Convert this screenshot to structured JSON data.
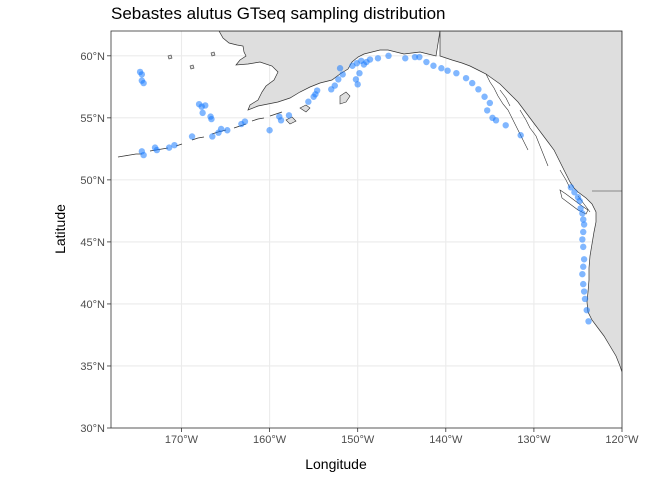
{
  "title": "Sebastes alutus GTseq sampling distribution",
  "x_axis_title": "Longitude",
  "y_axis_title": "Latitude",
  "colors": {
    "land": "#dedede",
    "coastline": "#333333",
    "grid": "#ebebeb",
    "points": "#1a7cff",
    "panel_border": "#333333"
  },
  "chart_data": {
    "type": "scatter",
    "xlim": [
      -178,
      -120
    ],
    "ylim": [
      30,
      62
    ],
    "x_ticks": [
      {
        "value": -170,
        "label": "170°W"
      },
      {
        "value": -160,
        "label": "160°W"
      },
      {
        "value": -150,
        "label": "150°W"
      },
      {
        "value": -140,
        "label": "140°W"
      },
      {
        "value": -130,
        "label": "130°W"
      },
      {
        "value": -120,
        "label": "120°W"
      }
    ],
    "y_ticks": [
      {
        "value": 30,
        "label": "30°N"
      },
      {
        "value": 35,
        "label": "35°N"
      },
      {
        "value": 40,
        "label": "40°N"
      },
      {
        "value": 45,
        "label": "45°N"
      },
      {
        "value": 50,
        "label": "50°N"
      },
      {
        "value": 55,
        "label": "55°N"
      },
      {
        "value": 60,
        "label": "60°N"
      }
    ],
    "grid": true,
    "points": [
      {
        "lon": -174.7,
        "lat": 58.7
      },
      {
        "lon": -174.5,
        "lat": 58.5
      },
      {
        "lon": -174.3,
        "lat": 57.8
      },
      {
        "lon": -174.5,
        "lat": 58.0
      },
      {
        "lon": -174.3,
        "lat": 52.0
      },
      {
        "lon": -174.5,
        "lat": 52.3
      },
      {
        "lon": -173.0,
        "lat": 52.6
      },
      {
        "lon": -172.8,
        "lat": 52.4
      },
      {
        "lon": -171.4,
        "lat": 52.6
      },
      {
        "lon": -170.8,
        "lat": 52.8
      },
      {
        "lon": -168.0,
        "lat": 56.1
      },
      {
        "lon": -167.7,
        "lat": 55.9
      },
      {
        "lon": -167.6,
        "lat": 55.4
      },
      {
        "lon": -167.3,
        "lat": 56.0
      },
      {
        "lon": -166.7,
        "lat": 55.1
      },
      {
        "lon": -166.6,
        "lat": 54.9
      },
      {
        "lon": -168.8,
        "lat": 53.5
      },
      {
        "lon": -166.5,
        "lat": 53.5
      },
      {
        "lon": -165.8,
        "lat": 53.8
      },
      {
        "lon": -165.5,
        "lat": 54.1
      },
      {
        "lon": -164.8,
        "lat": 54.0
      },
      {
        "lon": -163.2,
        "lat": 54.5
      },
      {
        "lon": -162.8,
        "lat": 54.7
      },
      {
        "lon": -160.0,
        "lat": 54.0
      },
      {
        "lon": -158.9,
        "lat": 55.1
      },
      {
        "lon": -158.7,
        "lat": 54.8
      },
      {
        "lon": -157.8,
        "lat": 55.2
      },
      {
        "lon": -155.6,
        "lat": 56.3
      },
      {
        "lon": -155.0,
        "lat": 56.7
      },
      {
        "lon": -154.6,
        "lat": 57.2
      },
      {
        "lon": -154.8,
        "lat": 56.9
      },
      {
        "lon": -153.0,
        "lat": 57.3
      },
      {
        "lon": -152.6,
        "lat": 57.6
      },
      {
        "lon": -152.2,
        "lat": 58.1
      },
      {
        "lon": -151.7,
        "lat": 58.5
      },
      {
        "lon": -152.0,
        "lat": 59.0
      },
      {
        "lon": -150.6,
        "lat": 59.2
      },
      {
        "lon": -150.1,
        "lat": 59.4
      },
      {
        "lon": -149.6,
        "lat": 59.6
      },
      {
        "lon": -149.3,
        "lat": 59.3
      },
      {
        "lon": -149.0,
        "lat": 59.5
      },
      {
        "lon": -148.6,
        "lat": 59.7
      },
      {
        "lon": -147.7,
        "lat": 59.8
      },
      {
        "lon": -146.5,
        "lat": 60.0
      },
      {
        "lon": -149.8,
        "lat": 58.6
      },
      {
        "lon": -150.2,
        "lat": 58.1
      },
      {
        "lon": -150.0,
        "lat": 57.7
      },
      {
        "lon": -144.6,
        "lat": 59.8
      },
      {
        "lon": -143.5,
        "lat": 59.9
      },
      {
        "lon": -143.0,
        "lat": 59.9
      },
      {
        "lon": -142.2,
        "lat": 59.5
      },
      {
        "lon": -141.4,
        "lat": 59.2
      },
      {
        "lon": -140.5,
        "lat": 59.0
      },
      {
        "lon": -139.8,
        "lat": 58.8
      },
      {
        "lon": -138.8,
        "lat": 58.6
      },
      {
        "lon": -137.7,
        "lat": 58.2
      },
      {
        "lon": -137.0,
        "lat": 57.8
      },
      {
        "lon": -136.3,
        "lat": 57.3
      },
      {
        "lon": -135.6,
        "lat": 56.7
      },
      {
        "lon": -135.0,
        "lat": 56.2
      },
      {
        "lon": -135.3,
        "lat": 55.6
      },
      {
        "lon": -134.7,
        "lat": 55.0
      },
      {
        "lon": -134.3,
        "lat": 54.8
      },
      {
        "lon": -133.2,
        "lat": 54.4
      },
      {
        "lon": -131.5,
        "lat": 53.6
      },
      {
        "lon": -125.8,
        "lat": 49.4
      },
      {
        "lon": -125.4,
        "lat": 49.0
      },
      {
        "lon": -125.0,
        "lat": 48.6
      },
      {
        "lon": -124.8,
        "lat": 48.3
      },
      {
        "lon": -124.7,
        "lat": 47.7
      },
      {
        "lon": -124.5,
        "lat": 47.3
      },
      {
        "lon": -124.4,
        "lat": 46.8
      },
      {
        "lon": -124.3,
        "lat": 46.4
      },
      {
        "lon": -124.4,
        "lat": 45.8
      },
      {
        "lon": -124.5,
        "lat": 45.2
      },
      {
        "lon": -124.4,
        "lat": 44.6
      },
      {
        "lon": -124.3,
        "lat": 43.6
      },
      {
        "lon": -124.4,
        "lat": 43.0
      },
      {
        "lon": -124.5,
        "lat": 42.4
      },
      {
        "lon": -124.4,
        "lat": 41.6
      },
      {
        "lon": -124.3,
        "lat": 41.0
      },
      {
        "lon": -124.2,
        "lat": 40.4
      },
      {
        "lon": -124.0,
        "lat": 39.5
      },
      {
        "lon": -123.8,
        "lat": 38.6
      }
    ]
  }
}
